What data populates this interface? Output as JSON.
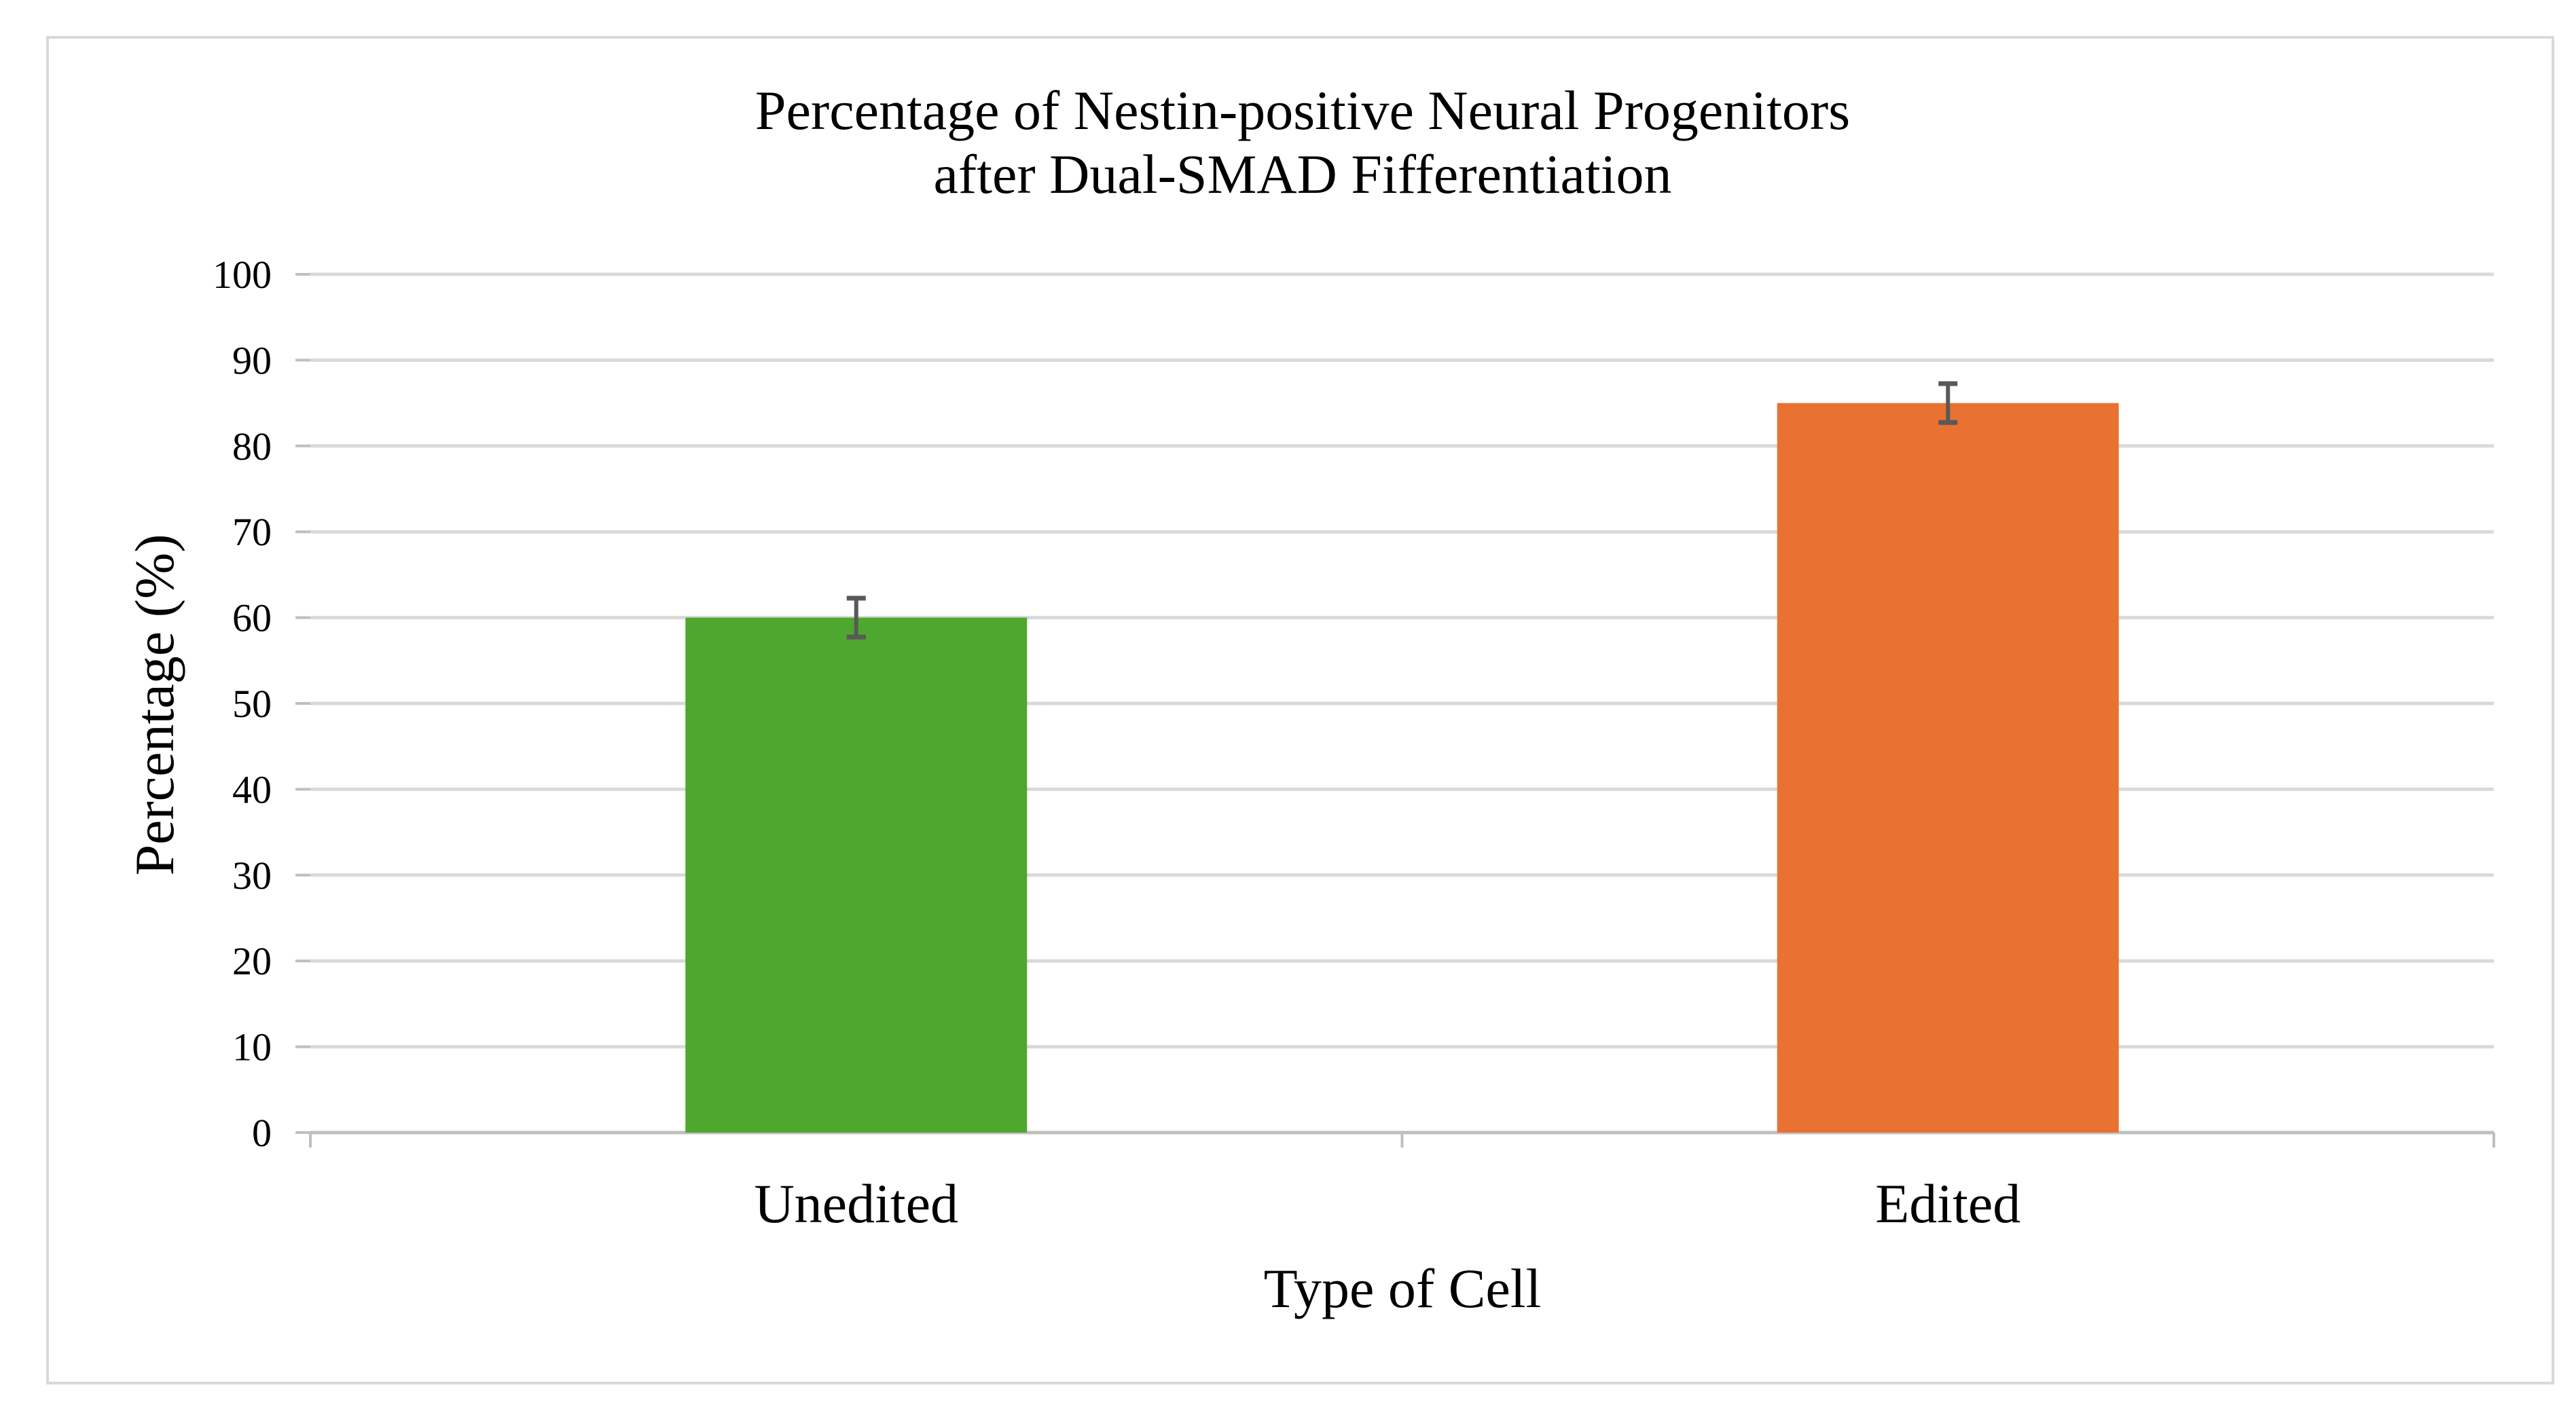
{
  "chart_data": {
    "type": "bar",
    "title": [
      "Percentage of Nestin-positive Neural Progenitors",
      "after Dual-SMAD Fifferentiation"
    ],
    "xlabel": "Type of Cell",
    "ylabel": "Percentage (%)",
    "categories": [
      "Unedited",
      "Edited"
    ],
    "values": [
      60,
      85
    ],
    "error": [
      2.5,
      2.5
    ],
    "ylim": [
      0,
      100
    ],
    "yticks": [
      0,
      10,
      20,
      30,
      40,
      50,
      60,
      70,
      80,
      90,
      100
    ],
    "grid": true,
    "legend": "none",
    "colors": {
      "bars": [
        "#4EA72E",
        "#E97132"
      ],
      "error_bar": "#595959",
      "grid": "#D9D9D9"
    }
  }
}
